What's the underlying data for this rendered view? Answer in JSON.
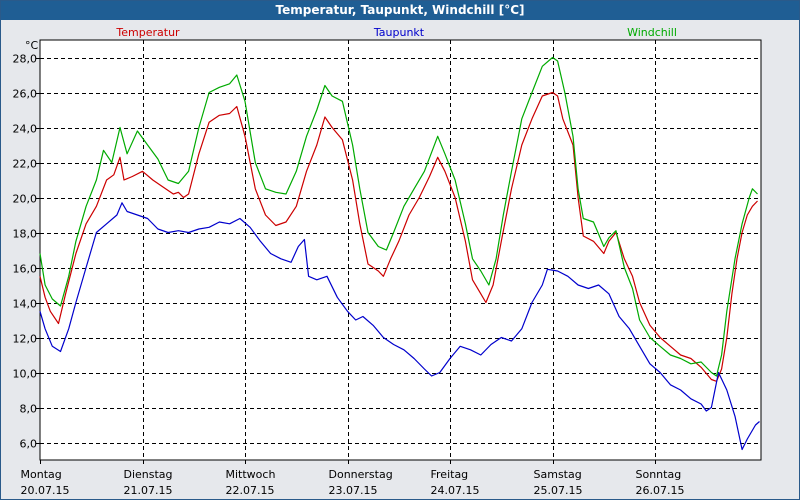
{
  "window": {
    "title": "Temperatur, Taupunkt, Windchill [°C]"
  },
  "chart_data": {
    "type": "line",
    "title": "Temperatur, Taupunkt, Windchill [°C]",
    "ylabel": "°C",
    "xlabel": "",
    "ylim": [
      5.0,
      29.0
    ],
    "xlim": [
      0,
      7.02
    ],
    "grid": true,
    "yticks": [
      {
        "value": 6.0,
        "label": "6,0"
      },
      {
        "value": 8.0,
        "label": "8,0"
      },
      {
        "value": 10.0,
        "label": "10,0"
      },
      {
        "value": 12.0,
        "label": "12,0"
      },
      {
        "value": 14.0,
        "label": "14,0"
      },
      {
        "value": 16.0,
        "label": "16,0"
      },
      {
        "value": 18.0,
        "label": "18,0"
      },
      {
        "value": 20.0,
        "label": "20,0"
      },
      {
        "value": 22.0,
        "label": "22,0"
      },
      {
        "value": 24.0,
        "label": "24,0"
      },
      {
        "value": 26.0,
        "label": "26,0"
      },
      {
        "value": 28.0,
        "label": "28,0"
      }
    ],
    "xticks": [
      {
        "day": 0,
        "weekday": "Montag",
        "date": "20.07.15"
      },
      {
        "day": 1,
        "weekday": "Dienstag",
        "date": "21.07.15"
      },
      {
        "day": 2,
        "weekday": "Mittwoch",
        "date": "22.07.15"
      },
      {
        "day": 3,
        "weekday": "Donnerstag",
        "date": "23.07.15"
      },
      {
        "day": 4,
        "weekday": "Freitag",
        "date": "24.07.15"
      },
      {
        "day": 5,
        "weekday": "Samstag",
        "date": "25.07.15"
      },
      {
        "day": 6,
        "weekday": "Sonntag",
        "date": "26.07.15"
      }
    ],
    "series": [
      {
        "name": "Temperatur",
        "color": "#CC0000",
        "points": [
          [
            0.0,
            15.5
          ],
          [
            0.05,
            14.3
          ],
          [
            0.1,
            13.5
          ],
          [
            0.18,
            12.8
          ],
          [
            0.25,
            14.5
          ],
          [
            0.35,
            16.8
          ],
          [
            0.45,
            18.5
          ],
          [
            0.55,
            19.5
          ],
          [
            0.65,
            21.0
          ],
          [
            0.72,
            21.3
          ],
          [
            0.78,
            22.3
          ],
          [
            0.82,
            21.0
          ],
          [
            0.9,
            21.2
          ],
          [
            1.0,
            21.5
          ],
          [
            1.1,
            21.0
          ],
          [
            1.2,
            20.6
          ],
          [
            1.3,
            20.2
          ],
          [
            1.35,
            20.3
          ],
          [
            1.4,
            20.0
          ],
          [
            1.45,
            20.2
          ],
          [
            1.55,
            22.5
          ],
          [
            1.65,
            24.3
          ],
          [
            1.75,
            24.7
          ],
          [
            1.85,
            24.8
          ],
          [
            1.92,
            25.2
          ],
          [
            2.0,
            23.5
          ],
          [
            2.1,
            20.5
          ],
          [
            2.2,
            19.0
          ],
          [
            2.3,
            18.4
          ],
          [
            2.4,
            18.6
          ],
          [
            2.5,
            19.5
          ],
          [
            2.6,
            21.5
          ],
          [
            2.7,
            23.0
          ],
          [
            2.78,
            24.6
          ],
          [
            2.85,
            24.0
          ],
          [
            2.95,
            23.3
          ],
          [
            3.05,
            21.0
          ],
          [
            3.12,
            18.5
          ],
          [
            3.2,
            16.2
          ],
          [
            3.3,
            15.8
          ],
          [
            3.35,
            15.5
          ],
          [
            3.42,
            16.5
          ],
          [
            3.5,
            17.5
          ],
          [
            3.6,
            19.0
          ],
          [
            3.7,
            20.0
          ],
          [
            3.8,
            21.2
          ],
          [
            3.88,
            22.3
          ],
          [
            3.95,
            21.5
          ],
          [
            4.05,
            20.0
          ],
          [
            4.15,
            17.5
          ],
          [
            4.22,
            15.3
          ],
          [
            4.3,
            14.5
          ],
          [
            4.35,
            14.0
          ],
          [
            4.42,
            15.0
          ],
          [
            4.5,
            17.5
          ],
          [
            4.6,
            20.5
          ],
          [
            4.7,
            23.0
          ],
          [
            4.8,
            24.5
          ],
          [
            4.9,
            25.8
          ],
          [
            5.0,
            26.0
          ],
          [
            5.05,
            25.8
          ],
          [
            5.1,
            24.5
          ],
          [
            5.2,
            23.0
          ],
          [
            5.25,
            20.0
          ],
          [
            5.3,
            17.8
          ],
          [
            5.4,
            17.5
          ],
          [
            5.5,
            16.8
          ],
          [
            5.55,
            17.5
          ],
          [
            5.62,
            18.0
          ],
          [
            5.7,
            16.5
          ],
          [
            5.78,
            15.5
          ],
          [
            5.85,
            14.0
          ],
          [
            5.95,
            12.7
          ],
          [
            6.05,
            12.0
          ],
          [
            6.15,
            11.5
          ],
          [
            6.25,
            11.0
          ],
          [
            6.35,
            10.8
          ],
          [
            6.45,
            10.3
          ],
          [
            6.55,
            9.6
          ],
          [
            6.6,
            9.5
          ],
          [
            6.65,
            10.2
          ],
          [
            6.7,
            12.0
          ],
          [
            6.75,
            14.5
          ],
          [
            6.8,
            16.5
          ],
          [
            6.85,
            18.0
          ],
          [
            6.9,
            19.0
          ],
          [
            6.95,
            19.5
          ],
          [
            7.0,
            19.8
          ]
        ]
      },
      {
        "name": "Taupunkt",
        "color": "#0000CC",
        "points": [
          [
            0.0,
            13.5
          ],
          [
            0.05,
            12.5
          ],
          [
            0.12,
            11.5
          ],
          [
            0.2,
            11.2
          ],
          [
            0.28,
            12.5
          ],
          [
            0.35,
            14.0
          ],
          [
            0.45,
            16.0
          ],
          [
            0.55,
            18.0
          ],
          [
            0.65,
            18.5
          ],
          [
            0.75,
            19.0
          ],
          [
            0.8,
            19.7
          ],
          [
            0.85,
            19.2
          ],
          [
            0.95,
            19.0
          ],
          [
            1.05,
            18.8
          ],
          [
            1.15,
            18.2
          ],
          [
            1.25,
            18.0
          ],
          [
            1.35,
            18.1
          ],
          [
            1.45,
            18.0
          ],
          [
            1.55,
            18.2
          ],
          [
            1.65,
            18.3
          ],
          [
            1.75,
            18.6
          ],
          [
            1.85,
            18.5
          ],
          [
            1.95,
            18.8
          ],
          [
            2.05,
            18.3
          ],
          [
            2.15,
            17.5
          ],
          [
            2.25,
            16.8
          ],
          [
            2.35,
            16.5
          ],
          [
            2.45,
            16.3
          ],
          [
            2.52,
            17.2
          ],
          [
            2.58,
            17.6
          ],
          [
            2.62,
            15.5
          ],
          [
            2.7,
            15.3
          ],
          [
            2.8,
            15.5
          ],
          [
            2.9,
            14.3
          ],
          [
            3.0,
            13.5
          ],
          [
            3.08,
            13.0
          ],
          [
            3.15,
            13.2
          ],
          [
            3.25,
            12.7
          ],
          [
            3.35,
            12.0
          ],
          [
            3.45,
            11.6
          ],
          [
            3.55,
            11.3
          ],
          [
            3.65,
            10.8
          ],
          [
            3.75,
            10.2
          ],
          [
            3.82,
            9.8
          ],
          [
            3.9,
            10.0
          ],
          [
            4.0,
            10.8
          ],
          [
            4.1,
            11.5
          ],
          [
            4.2,
            11.3
          ],
          [
            4.3,
            11.0
          ],
          [
            4.4,
            11.6
          ],
          [
            4.5,
            12.0
          ],
          [
            4.6,
            11.8
          ],
          [
            4.7,
            12.5
          ],
          [
            4.8,
            14.0
          ],
          [
            4.9,
            15.0
          ],
          [
            4.95,
            15.9
          ],
          [
            5.05,
            15.8
          ],
          [
            5.15,
            15.5
          ],
          [
            5.25,
            15.0
          ],
          [
            5.35,
            14.8
          ],
          [
            5.45,
            15.0
          ],
          [
            5.55,
            14.5
          ],
          [
            5.65,
            13.2
          ],
          [
            5.75,
            12.5
          ],
          [
            5.85,
            11.5
          ],
          [
            5.95,
            10.5
          ],
          [
            6.05,
            10.0
          ],
          [
            6.15,
            9.3
          ],
          [
            6.25,
            9.0
          ],
          [
            6.35,
            8.5
          ],
          [
            6.45,
            8.2
          ],
          [
            6.5,
            7.8
          ],
          [
            6.55,
            8.0
          ],
          [
            6.62,
            10.0
          ],
          [
            6.7,
            9.0
          ],
          [
            6.78,
            7.5
          ],
          [
            6.85,
            5.6
          ],
          [
            6.9,
            6.2
          ],
          [
            6.98,
            7.0
          ],
          [
            7.02,
            7.2
          ]
        ]
      },
      {
        "name": "Windchill",
        "color": "#00AA00",
        "points": [
          [
            0.0,
            16.8
          ],
          [
            0.05,
            15.0
          ],
          [
            0.12,
            14.2
          ],
          [
            0.2,
            13.8
          ],
          [
            0.28,
            15.5
          ],
          [
            0.35,
            17.5
          ],
          [
            0.45,
            19.5
          ],
          [
            0.55,
            21.0
          ],
          [
            0.62,
            22.7
          ],
          [
            0.7,
            22.0
          ],
          [
            0.78,
            24.0
          ],
          [
            0.85,
            22.5
          ],
          [
            0.95,
            23.8
          ],
          [
            1.05,
            23.0
          ],
          [
            1.15,
            22.2
          ],
          [
            1.25,
            21.0
          ],
          [
            1.35,
            20.8
          ],
          [
            1.45,
            21.5
          ],
          [
            1.55,
            24.0
          ],
          [
            1.65,
            26.0
          ],
          [
            1.75,
            26.3
          ],
          [
            1.85,
            26.5
          ],
          [
            1.92,
            27.0
          ],
          [
            2.0,
            25.5
          ],
          [
            2.1,
            22.0
          ],
          [
            2.2,
            20.5
          ],
          [
            2.3,
            20.3
          ],
          [
            2.4,
            20.2
          ],
          [
            2.5,
            21.5
          ],
          [
            2.6,
            23.5
          ],
          [
            2.7,
            25.0
          ],
          [
            2.78,
            26.4
          ],
          [
            2.85,
            25.8
          ],
          [
            2.95,
            25.5
          ],
          [
            3.05,
            23.0
          ],
          [
            3.12,
            20.5
          ],
          [
            3.2,
            18.0
          ],
          [
            3.3,
            17.2
          ],
          [
            3.38,
            17.0
          ],
          [
            3.45,
            18.0
          ],
          [
            3.55,
            19.5
          ],
          [
            3.65,
            20.5
          ],
          [
            3.75,
            21.5
          ],
          [
            3.88,
            23.5
          ],
          [
            3.95,
            22.5
          ],
          [
            4.05,
            21.0
          ],
          [
            4.15,
            18.5
          ],
          [
            4.22,
            16.5
          ],
          [
            4.3,
            15.8
          ],
          [
            4.38,
            15.0
          ],
          [
            4.45,
            16.5
          ],
          [
            4.52,
            19.0
          ],
          [
            4.6,
            21.5
          ],
          [
            4.7,
            24.5
          ],
          [
            4.8,
            26.0
          ],
          [
            4.9,
            27.5
          ],
          [
            5.0,
            28.0
          ],
          [
            5.05,
            27.8
          ],
          [
            5.12,
            26.0
          ],
          [
            5.2,
            23.5
          ],
          [
            5.25,
            20.5
          ],
          [
            5.3,
            18.8
          ],
          [
            5.4,
            18.6
          ],
          [
            5.5,
            17.2
          ],
          [
            5.55,
            17.7
          ],
          [
            5.62,
            18.1
          ],
          [
            5.7,
            16.0
          ],
          [
            5.78,
            14.8
          ],
          [
            5.85,
            13.0
          ],
          [
            5.95,
            12.0
          ],
          [
            6.05,
            11.5
          ],
          [
            6.15,
            11.0
          ],
          [
            6.25,
            10.8
          ],
          [
            6.35,
            10.5
          ],
          [
            6.45,
            10.6
          ],
          [
            6.55,
            10.0
          ],
          [
            6.6,
            9.8
          ],
          [
            6.65,
            11.0
          ],
          [
            6.7,
            13.5
          ],
          [
            6.78,
            16.5
          ],
          [
            6.85,
            18.5
          ],
          [
            6.92,
            20.0
          ],
          [
            6.95,
            20.5
          ],
          [
            7.0,
            20.2
          ]
        ]
      }
    ]
  }
}
